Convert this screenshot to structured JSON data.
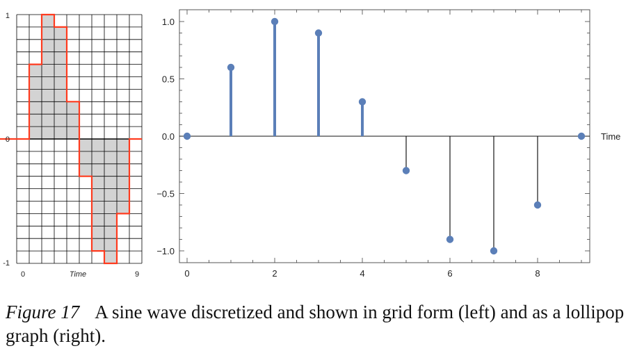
{
  "chart_data": [
    {
      "type": "area",
      "x": [
        0,
        1,
        2,
        3,
        4,
        5,
        6,
        7,
        8,
        9
      ],
      "values": [
        0,
        0.6,
        1.0,
        0.9,
        0.3,
        -0.3,
        -0.9,
        -1.0,
        -0.6,
        0
      ],
      "xlabel": "Time",
      "x_ticks": [
        "0",
        "9"
      ],
      "y_ticks": [
        "1",
        "0",
        "-1"
      ],
      "ylim": [
        -1,
        1
      ],
      "grid": true,
      "colors": {
        "fill": "#d3d3d3",
        "outline": "#ff3b1f",
        "grid": "#000000"
      }
    },
    {
      "type": "scatter",
      "style": "lollipop",
      "x": [
        0,
        1,
        2,
        3,
        4,
        5,
        6,
        7,
        8,
        9
      ],
      "values": [
        0,
        0.6,
        1.0,
        0.9,
        0.3,
        -0.3,
        -0.9,
        -1.0,
        -0.6,
        0
      ],
      "xlabel": "Time",
      "x_ticks": [
        "0",
        "2",
        "4",
        "6",
        "8"
      ],
      "y_ticks": [
        "1.0",
        "0.5",
        "0.0",
        "−0.5",
        "−1.0"
      ],
      "xlim": [
        0,
        9
      ],
      "ylim": [
        -1,
        1
      ],
      "grid": false,
      "colors": {
        "marker": "#5b7fb8",
        "stem_positive": "#5b7fb8",
        "stem_negative": "#000000"
      }
    }
  ],
  "caption": {
    "figure_label": "Figure 17",
    "text": "A sine wave discretized and shown in grid form (left) and as a lollipop graph (right)."
  }
}
